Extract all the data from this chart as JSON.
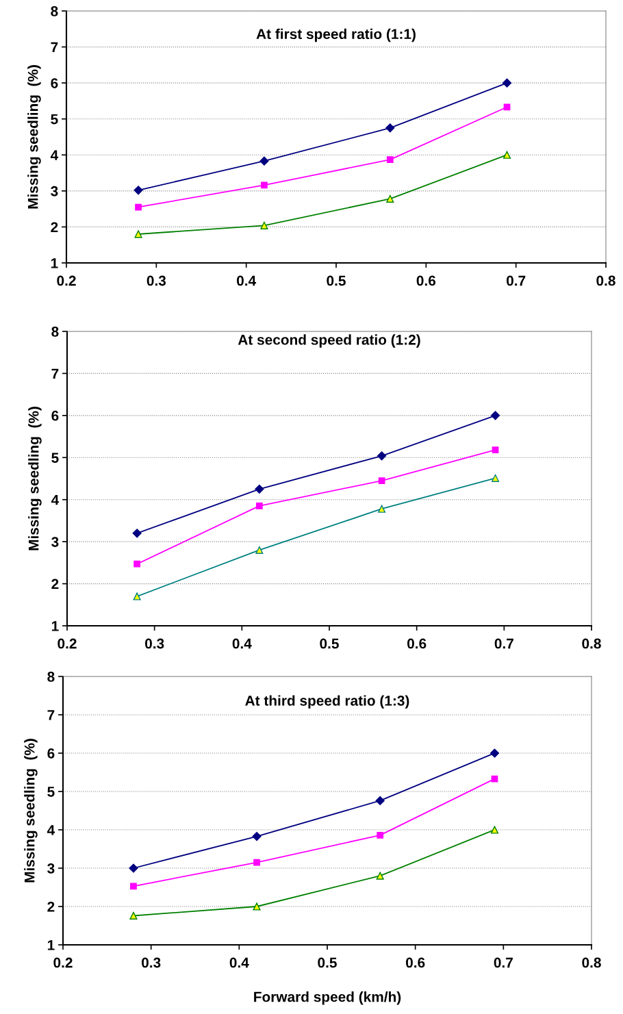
{
  "chart_data": [
    {
      "type": "line",
      "title": "At first speed ratio (1:1)",
      "ylabel": "Missing seedling  (%)",
      "x": [
        0.28,
        0.42,
        0.56,
        0.69
      ],
      "xlim": [
        0.2,
        0.8
      ],
      "xticks": [
        0.2,
        0.3,
        0.4,
        0.5,
        0.6,
        0.7,
        0.8
      ],
      "ylim": [
        1,
        8
      ],
      "yticks": [
        1,
        2,
        3,
        4,
        5,
        6,
        7,
        8
      ],
      "grid": "y",
      "legend": false,
      "series": [
        {
          "color": "#000080",
          "marker": "diamond",
          "values": [
            3.02,
            3.83,
            4.75,
            6.0
          ]
        },
        {
          "color": "#ff00ff",
          "marker": "square",
          "values": [
            2.55,
            3.16,
            3.87,
            5.33
          ]
        },
        {
          "color": "#008000",
          "marker": "triangle",
          "values": [
            1.8,
            2.04,
            2.78,
            4.0
          ]
        }
      ]
    },
    {
      "type": "line",
      "title": "At second speed ratio (1:2)",
      "ylabel": "Missing seedling  (%)",
      "x": [
        0.28,
        0.42,
        0.56,
        0.69
      ],
      "xlim": [
        0.2,
        0.8
      ],
      "xticks": [
        0.2,
        0.3,
        0.4,
        0.5,
        0.6,
        0.7,
        0.8
      ],
      "ylim": [
        1,
        8
      ],
      "yticks": [
        1,
        2,
        3,
        4,
        5,
        6,
        7,
        8
      ],
      "grid": "y",
      "legend": false,
      "series": [
        {
          "color": "#000080",
          "marker": "diamond",
          "values": [
            3.2,
            4.25,
            5.04,
            6.0
          ]
        },
        {
          "color": "#ff00ff",
          "marker": "square",
          "values": [
            2.47,
            3.85,
            4.45,
            5.18
          ]
        },
        {
          "color": "#008080",
          "marker": "triangle",
          "values": [
            1.7,
            2.8,
            3.78,
            4.51
          ]
        }
      ]
    },
    {
      "type": "line",
      "title": "At third speed ratio (1:3)",
      "ylabel": "Missing seedling  (%)",
      "xlabel": "Forward speed (km/h)",
      "x": [
        0.28,
        0.42,
        0.56,
        0.69
      ],
      "xlim": [
        0.2,
        0.8
      ],
      "xticks": [
        0.2,
        0.3,
        0.4,
        0.5,
        0.6,
        0.7,
        0.8
      ],
      "ylim": [
        1,
        8
      ],
      "yticks": [
        1,
        2,
        3,
        4,
        5,
        6,
        7,
        8
      ],
      "grid": "y",
      "legend": false,
      "series": [
        {
          "color": "#000080",
          "marker": "diamond",
          "values": [
            3.0,
            3.83,
            4.76,
            6.0
          ]
        },
        {
          "color": "#ff00ff",
          "marker": "square",
          "values": [
            2.53,
            3.15,
            3.86,
            5.33
          ]
        },
        {
          "color": "#008000",
          "marker": "triangle",
          "values": [
            1.76,
            2.0,
            2.8,
            4.0
          ]
        }
      ]
    }
  ]
}
